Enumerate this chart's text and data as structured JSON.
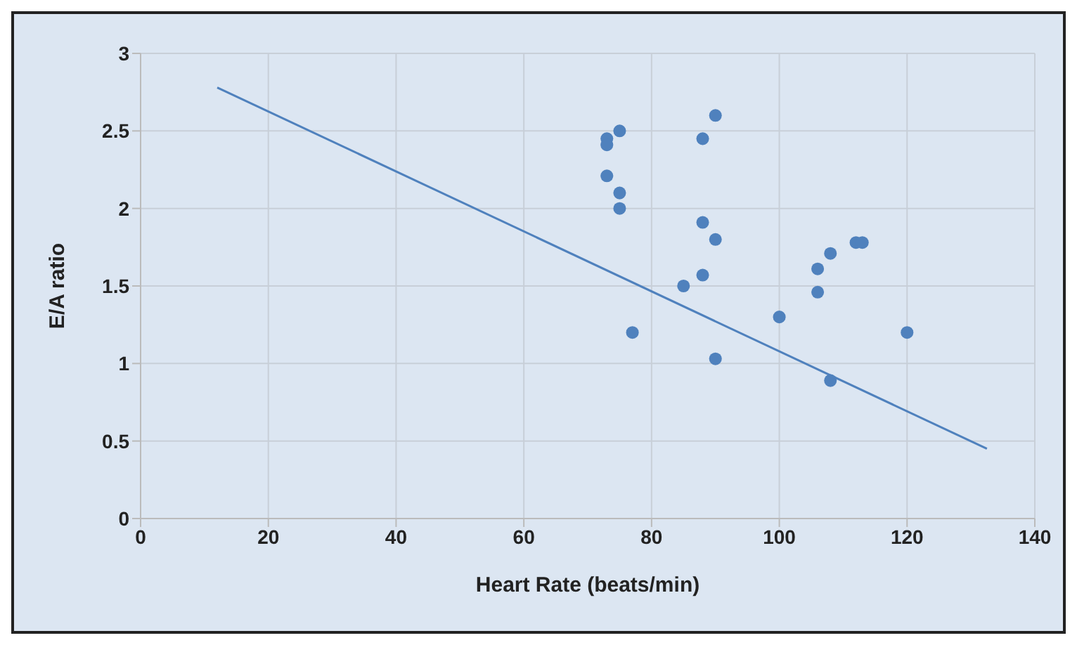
{
  "chart_data": {
    "type": "scatter",
    "xlabel": "Heart Rate (beats/min)",
    "ylabel": "E/A ratio",
    "xlim": [
      0,
      140
    ],
    "xticks": [
      0,
      20,
      40,
      60,
      80,
      100,
      120,
      140
    ],
    "ylim": [
      0,
      3
    ],
    "yticks": [
      0,
      0.5,
      1,
      1.5,
      2,
      2.5,
      3
    ],
    "grid": true,
    "marker": "circle",
    "series": [
      {
        "type": "scatter",
        "color": "#4f81bd",
        "x": [
          73,
          73,
          73,
          75,
          75,
          75,
          77,
          85,
          88,
          88,
          88,
          90,
          90,
          90,
          100,
          106,
          106,
          108,
          108,
          112,
          113,
          120
        ],
        "values": [
          2.45,
          2.41,
          2.21,
          2.5,
          2.1,
          2.0,
          1.2,
          1.5,
          2.45,
          1.91,
          1.57,
          2.6,
          1.8,
          1.03,
          1.3,
          1.61,
          1.46,
          1.71,
          0.89,
          1.78,
          1.78,
          1.2
        ]
      },
      {
        "type": "line",
        "color": "#4f81bd",
        "marker": "none",
        "x": [
          12,
          132.5
        ],
        "values": [
          2.78,
          0.45
        ]
      }
    ]
  }
}
